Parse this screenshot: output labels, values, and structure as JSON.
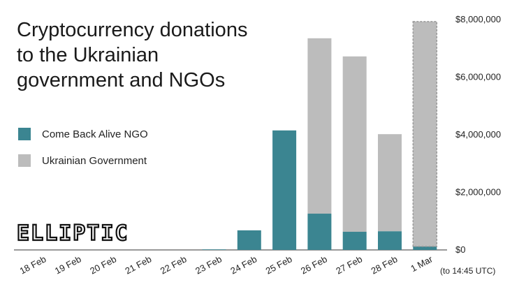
{
  "chart_data": {
    "type": "stacked_bar",
    "title": [
      "Cryptocurrency donations",
      "to the Ukrainian",
      "government and NGOs"
    ],
    "logo": "ELLIPTIC",
    "annotation": "(to 14:45 UTC)",
    "categories": [
      "18 Feb",
      "19 Feb",
      "20 Feb",
      "21 Feb",
      "22 Feb",
      "23 Feb",
      "24 Feb",
      "25 Feb",
      "26 Feb",
      "27 Feb",
      "28 Feb",
      "1 Mar"
    ],
    "series": [
      {
        "name": "Come Back Alive NGO",
        "color": "#3b8591",
        "values": [
          0,
          0,
          0,
          0,
          0,
          20000,
          680000,
          4150000,
          1260000,
          630000,
          650000,
          120000
        ]
      },
      {
        "name": "Ukrainian Government",
        "color": "#bcbcbc",
        "values": [
          0,
          0,
          0,
          0,
          0,
          0,
          0,
          0,
          6090000,
          6090000,
          3370000,
          7810000
        ]
      }
    ],
    "ylim": [
      0,
      8000000
    ],
    "yticks": [
      {
        "value": 0,
        "label": "$0"
      },
      {
        "value": 2000000,
        "label": "$2,000,000"
      },
      {
        "value": 4000000,
        "label": "$4,000,000"
      },
      {
        "value": 6000000,
        "label": "$6,000,000"
      },
      {
        "value": 8000000,
        "label": "$8,000,000"
      }
    ],
    "y_axis_side": "right",
    "grid": false,
    "dashed_last_bar": true
  }
}
